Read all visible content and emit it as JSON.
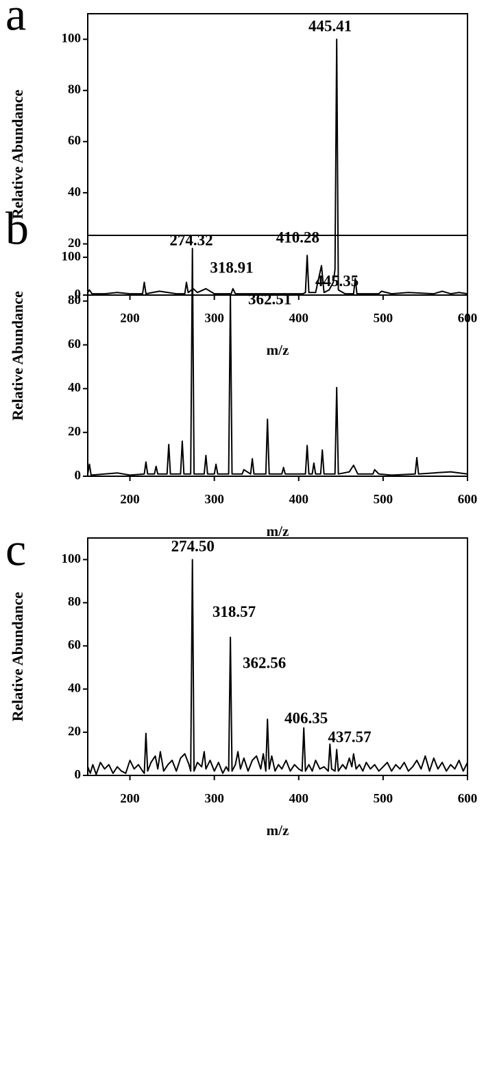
{
  "chart_data": [
    {
      "type": "line",
      "title": "a",
      "xlabel": "m/z",
      "ylabel": "Relative Abundance",
      "color": "#000000",
      "xlim": [
        150,
        600
      ],
      "ylim": [
        0,
        110
      ],
      "xticks": [
        200,
        300,
        400,
        500,
        600
      ],
      "yticks": [
        0,
        20,
        40,
        60,
        80,
        100
      ],
      "x": [
        150,
        152,
        155,
        170,
        185,
        200,
        215,
        217,
        219,
        235,
        245,
        255,
        265,
        267,
        269,
        275,
        280,
        290,
        300,
        320,
        322,
        325,
        350,
        380,
        405,
        408,
        410,
        412,
        420,
        427,
        430,
        436,
        441,
        443,
        445,
        447,
        455,
        465,
        467,
        469,
        495,
        498,
        510,
        530,
        560,
        570,
        580,
        590,
        600
      ],
      "values": [
        1,
        2,
        0.5,
        0.5,
        1,
        0.5,
        0.5,
        5,
        0.5,
        1.5,
        1,
        0.5,
        0.5,
        5,
        1,
        2.5,
        1,
        2.5,
        0.5,
        0.5,
        2.5,
        0.5,
        0.5,
        0.5,
        0.5,
        1,
        15.5,
        1,
        1,
        11.5,
        1,
        2,
        5,
        10,
        100,
        2,
        0.5,
        0.5,
        6.5,
        0.5,
        0.5,
        1.5,
        0.5,
        1,
        0.5,
        1.5,
        0.5,
        1,
        0.5
      ],
      "annotations": [
        {
          "label": "410.28",
          "x": 410.28
        },
        {
          "label": "445.41",
          "x": 445.41
        }
      ]
    },
    {
      "type": "line",
      "title": "b",
      "xlabel": "m/z",
      "ylabel": "Relative Abundance",
      "color": "#000000",
      "xlim": [
        150,
        600
      ],
      "ylim": [
        0,
        110
      ],
      "xticks": [
        200,
        300,
        400,
        500,
        600
      ],
      "yticks": [
        0,
        20,
        40,
        60,
        80,
        100
      ],
      "x": [
        150,
        152,
        154,
        170,
        185,
        200,
        217,
        219,
        221,
        229,
        231,
        233,
        244,
        246,
        248,
        260,
        262,
        264,
        272,
        274,
        276,
        288,
        290,
        292,
        300,
        302,
        304,
        317,
        319,
        321,
        333,
        335,
        343,
        345,
        347,
        361,
        363,
        365,
        380,
        382,
        384,
        408,
        410,
        412,
        416,
        418,
        420,
        426,
        428,
        430,
        443,
        445,
        447,
        460,
        465,
        470,
        488,
        490,
        495,
        510,
        538,
        540,
        542,
        560,
        580,
        600
      ],
      "values": [
        1,
        5.5,
        0.5,
        1,
        1.5,
        0.5,
        1,
        6.5,
        1,
        1,
        4.5,
        1,
        1,
        14.5,
        1,
        1,
        16,
        1,
        1,
        104,
        1,
        1,
        9.5,
        1,
        1,
        5.5,
        1,
        1,
        83,
        1,
        1,
        3,
        1,
        8,
        1,
        1,
        26,
        1,
        1,
        4,
        1,
        1,
        14,
        1,
        1,
        6,
        1,
        1,
        12,
        1,
        1,
        40.5,
        1,
        2,
        5,
        1,
        1,
        3,
        1,
        0.5,
        1,
        8.5,
        1,
        1.5,
        2,
        1
      ],
      "annotations": [
        {
          "label": "274.32",
          "x": 274.32
        },
        {
          "label": "318.91",
          "x": 318.91
        },
        {
          "label": "362.51",
          "x": 362.51
        },
        {
          "label": "445.35",
          "x": 445.35
        }
      ]
    },
    {
      "type": "line",
      "title": "c",
      "xlabel": "m/z",
      "ylabel": "Relative Abundance",
      "color": "#000000",
      "xlim": [
        150,
        600
      ],
      "ylim": [
        0,
        110
      ],
      "xticks": [
        200,
        300,
        400,
        500,
        600
      ],
      "yticks": [
        0,
        20,
        40,
        60,
        80,
        100
      ],
      "x": [
        150,
        153,
        156,
        160,
        165,
        170,
        175,
        180,
        185,
        190,
        195,
        200,
        205,
        210,
        215,
        217,
        219,
        221,
        225,
        230,
        233,
        236,
        240,
        245,
        250,
        255,
        260,
        265,
        270,
        272,
        274,
        276,
        280,
        285,
        288,
        290,
        295,
        300,
        305,
        310,
        314,
        317,
        319,
        321,
        325,
        328,
        331,
        335,
        340,
        345,
        350,
        355,
        358,
        361,
        363,
        365,
        368,
        372,
        376,
        380,
        385,
        390,
        395,
        400,
        404,
        406,
        408,
        412,
        416,
        420,
        425,
        430,
        435,
        437,
        439,
        443,
        445,
        447,
        452,
        456,
        460,
        463,
        465,
        468,
        472,
        476,
        480,
        485,
        490,
        495,
        500,
        505,
        510,
        515,
        520,
        525,
        530,
        535,
        540,
        545,
        550,
        555,
        560,
        565,
        570,
        575,
        580,
        585,
        590,
        595,
        600
      ],
      "values": [
        4,
        1,
        5,
        0.5,
        6,
        3,
        5,
        1,
        4,
        2,
        1,
        7,
        3,
        5,
        2,
        1,
        19.5,
        2,
        6,
        9,
        3,
        11,
        2,
        5,
        7,
        2,
        8,
        10,
        5,
        2,
        100,
        2,
        6,
        4,
        11,
        3,
        7,
        2,
        6,
        1,
        4,
        2,
        64,
        2,
        5,
        11,
        3,
        8,
        2,
        7,
        9,
        3,
        10,
        2,
        26,
        3,
        9,
        2,
        5,
        3,
        7,
        2,
        5,
        3,
        2,
        22,
        2,
        5,
        2,
        7,
        3,
        4,
        2,
        14.5,
        3,
        2,
        12,
        2,
        5,
        3,
        8,
        4,
        10,
        3,
        5,
        2,
        6,
        3,
        5,
        2,
        4,
        6,
        2,
        5,
        3,
        6,
        2,
        4,
        7,
        3,
        9,
        2,
        8,
        3,
        6,
        2,
        5,
        3,
        7,
        2,
        6
      ],
      "annotations": [
        {
          "label": "274.50",
          "x": 274.5
        },
        {
          "label": "318.57",
          "x": 318.57
        },
        {
          "label": "362.56",
          "x": 362.56
        },
        {
          "label": "406.35",
          "x": 406.35
        },
        {
          "label": "437.57",
          "x": 437.57
        }
      ]
    }
  ]
}
